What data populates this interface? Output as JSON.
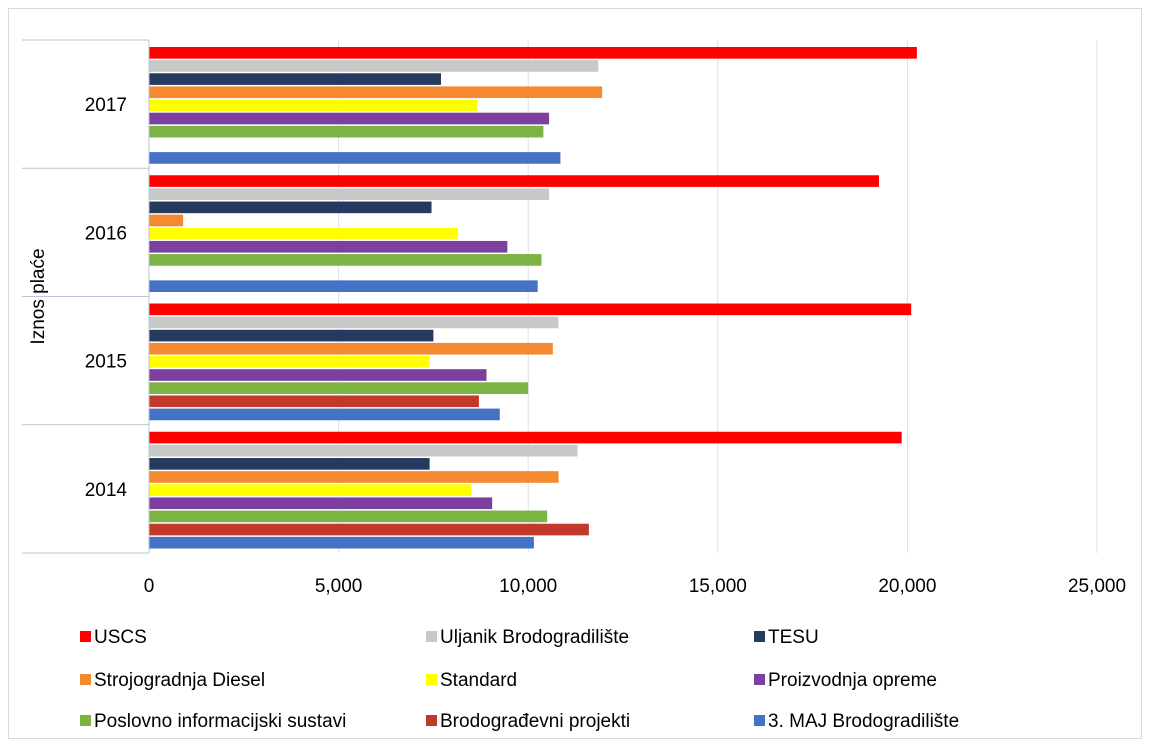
{
  "chart_data": {
    "type": "bar",
    "orientation": "horizontal",
    "categories": [
      "2014",
      "2015",
      "2016",
      "2017"
    ],
    "ylabel": "Iznos plaće",
    "xlabel": "",
    "xlim": [
      0,
      25000
    ],
    "x_ticks": [
      0,
      5000,
      10000,
      15000,
      20000,
      25000
    ],
    "x_tick_labels": [
      "0",
      "5,000",
      "10,000",
      "15,000",
      "20,000",
      "25,000"
    ],
    "grid": "vertical",
    "legend_position": "bottom",
    "series": [
      {
        "name": "3. MAJ Brodogradilište",
        "color": "#4472c4",
        "values": [
          10150,
          9250,
          10250,
          10850
        ]
      },
      {
        "name": "Brodograđevni projekti",
        "color": "#c0392b",
        "values": [
          11600,
          8700,
          null,
          null
        ]
      },
      {
        "name": "Poslovno informacijski sustavi",
        "color": "#7cb342",
        "values": [
          10500,
          10000,
          10350,
          10400
        ]
      },
      {
        "name": "Proizvodnja opreme",
        "color": "#7b3f9e",
        "values": [
          9050,
          8900,
          9450,
          10550
        ]
      },
      {
        "name": "Standard",
        "color": "#ffff00",
        "values": [
          8500,
          7400,
          8150,
          8650
        ]
      },
      {
        "name": "Strojogradnja Diesel",
        "color": "#f5892f",
        "values": [
          10800,
          10650,
          900,
          11950
        ]
      },
      {
        "name": "TESU",
        "color": "#243a5e",
        "values": [
          7400,
          7500,
          7450,
          7700
        ]
      },
      {
        "name": "Uljanik Brodogradilište",
        "color": "#c8c8c8",
        "values": [
          11300,
          10800,
          10550,
          11850
        ]
      },
      {
        "name": "USCS",
        "color": "#ff0000",
        "values": [
          19850,
          20100,
          19250,
          20250
        ]
      }
    ],
    "legend_order": [
      "USCS",
      "Uljanik Brodogradilište",
      "TESU",
      "Strojogradnja Diesel",
      "Standard",
      "Proizvodnja opreme",
      "Poslovno informacijski sustavi",
      "Brodograđevni projekti",
      "3. MAJ Brodogradilište"
    ]
  }
}
